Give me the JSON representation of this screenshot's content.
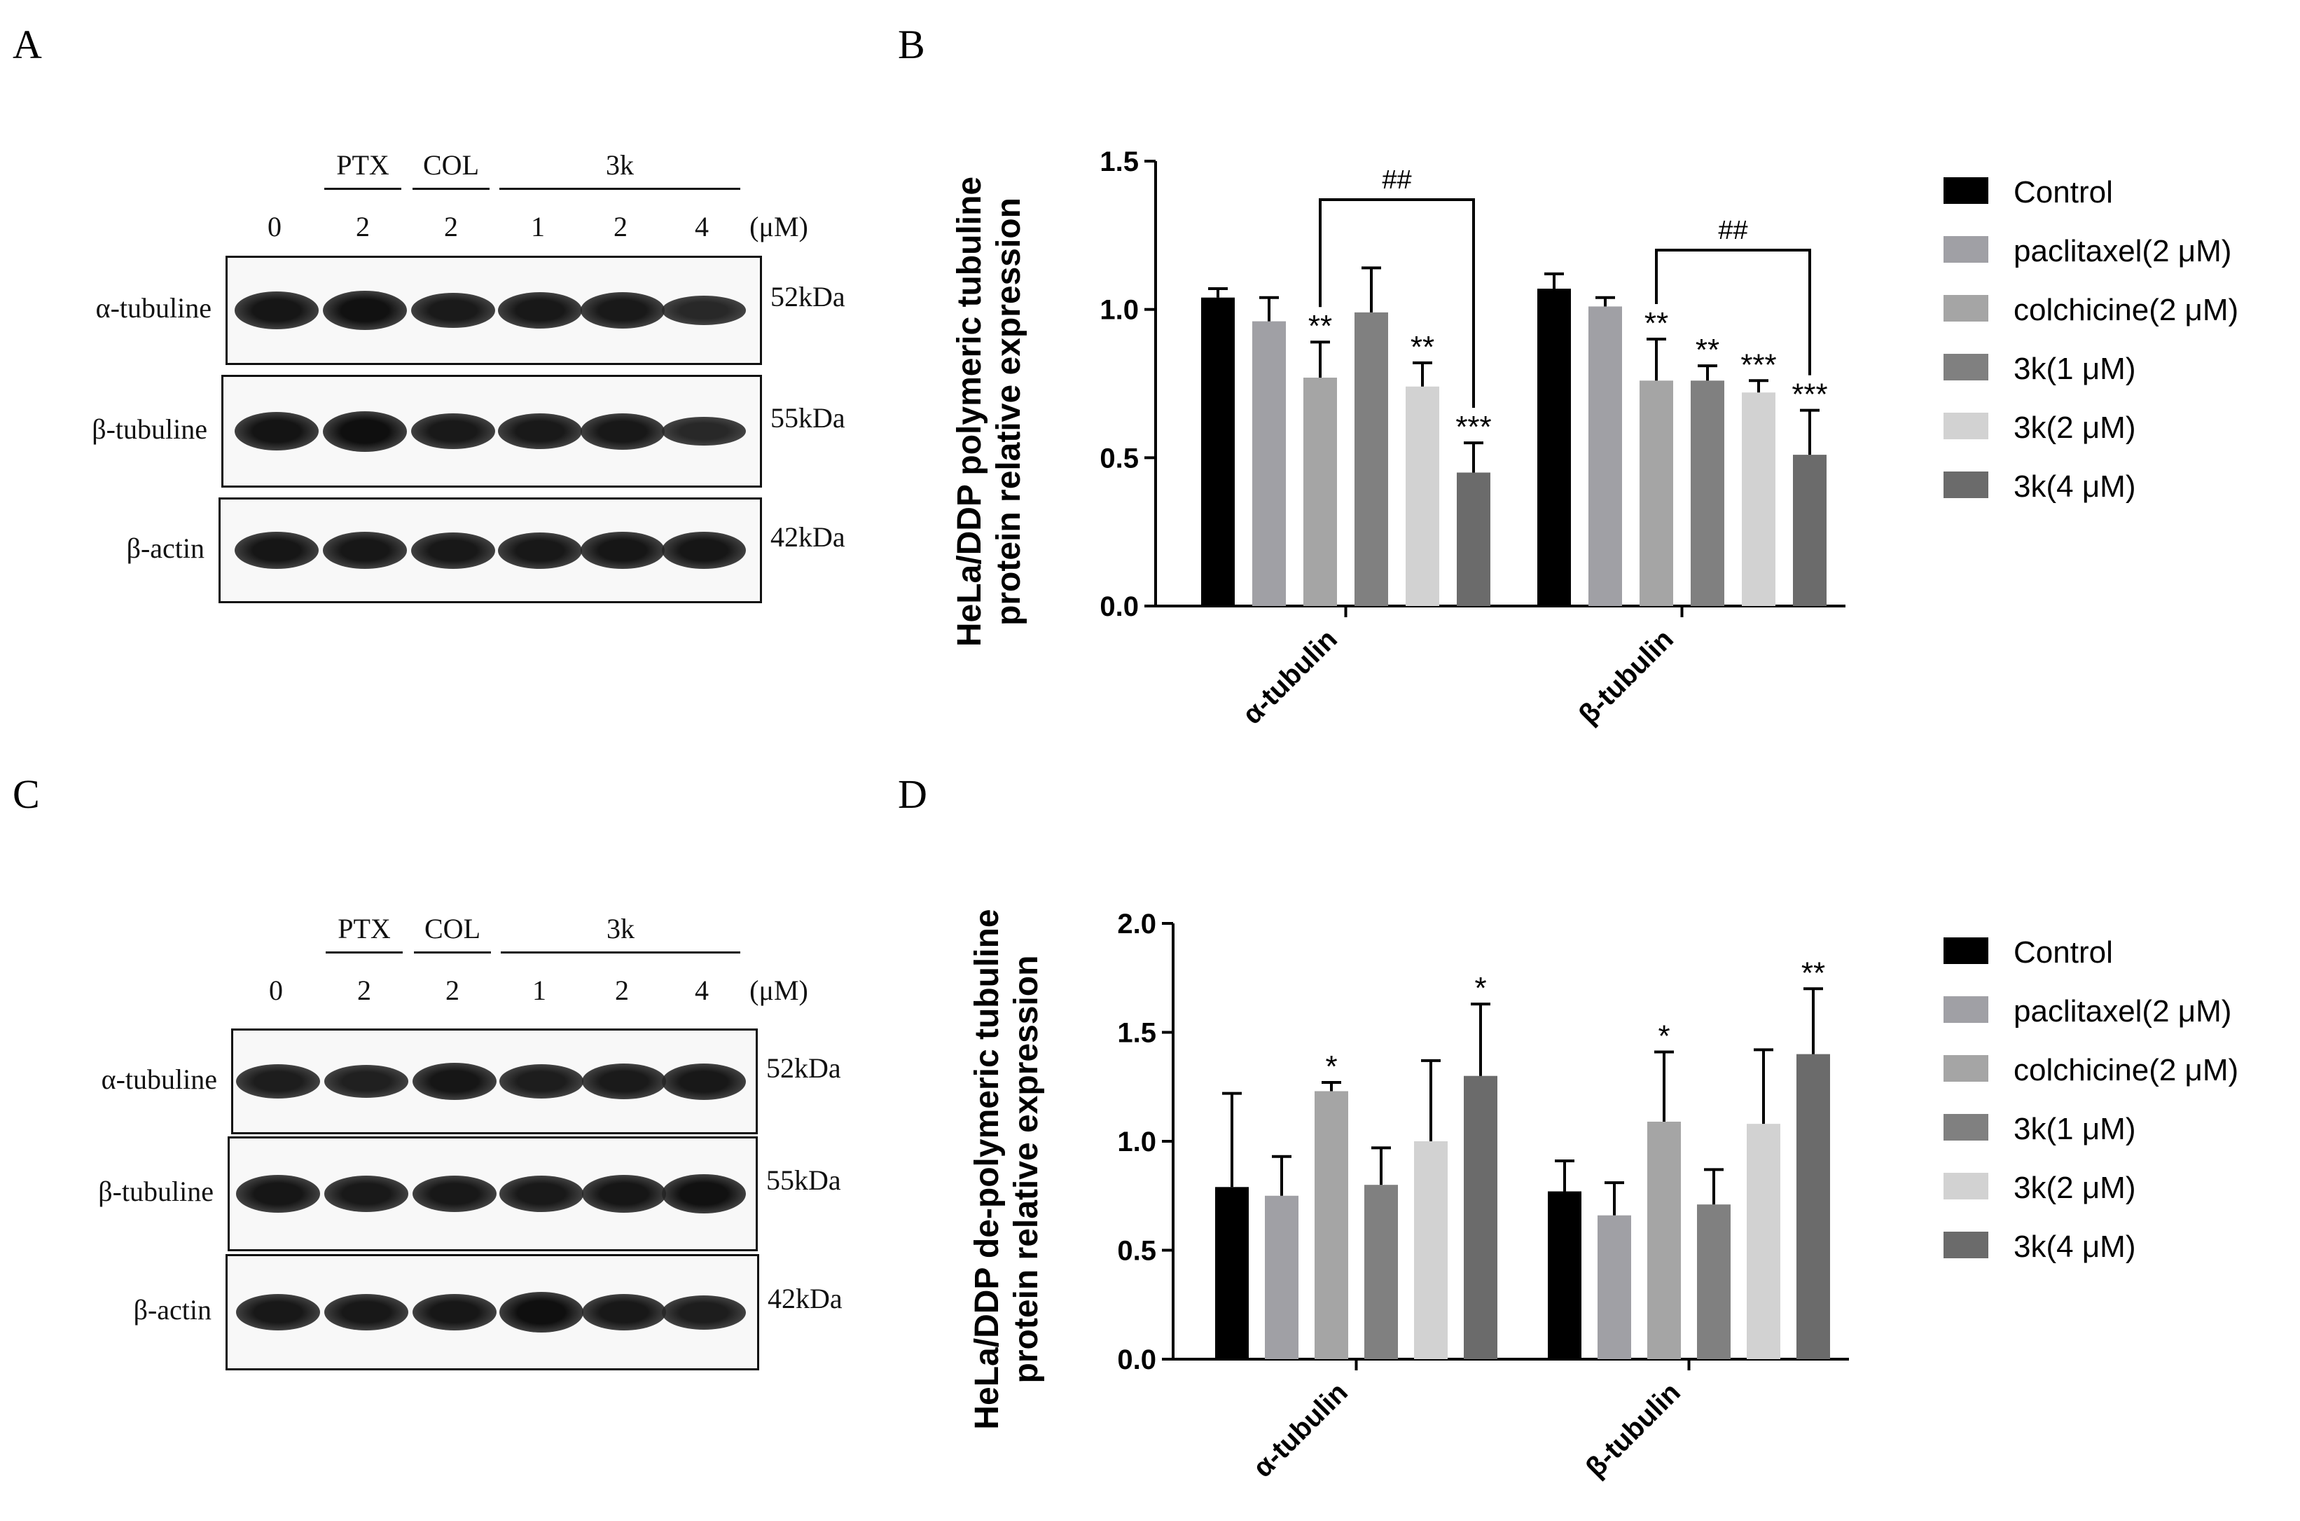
{
  "panels": {
    "A": "A",
    "B": "B",
    "C": "C",
    "D": "D"
  },
  "blot_top": {
    "groups": [
      "PTX",
      "COL",
      "3k"
    ],
    "lanes": [
      "0",
      "2",
      "2",
      "1",
      "2",
      "4"
    ],
    "unit": "(μM)",
    "rows": [
      {
        "label": "α-tubuline",
        "kda": "52kDa",
        "intensity": [
          0.85,
          0.95,
          0.75,
          0.8,
          0.78,
          0.45
        ]
      },
      {
        "label": "β-tubuline",
        "kda": "55kDa",
        "intensity": [
          0.9,
          1.0,
          0.78,
          0.78,
          0.8,
          0.45
        ]
      },
      {
        "label": "β-actin",
        "kda": "42kDa",
        "intensity": [
          0.85,
          0.82,
          0.8,
          0.8,
          0.85,
          0.85
        ]
      }
    ]
  },
  "blot_bottom": {
    "groups": [
      "PTX",
      "COL",
      "3k"
    ],
    "lanes": [
      "0",
      "2",
      "2",
      "1",
      "2",
      "4"
    ],
    "unit": "(μM)",
    "rows": [
      {
        "label": "α-tubuline",
        "kda": "52kDa",
        "intensity": [
          0.7,
          0.62,
          0.85,
          0.68,
          0.75,
          0.8
        ]
      },
      {
        "label": "β-tubuline",
        "kda": "55kDa",
        "intensity": [
          0.85,
          0.78,
          0.8,
          0.78,
          0.85,
          0.95
        ]
      },
      {
        "label": "β-actin",
        "kda": "42kDa",
        "intensity": [
          0.8,
          0.8,
          0.82,
          1.0,
          0.8,
          0.7
        ]
      }
    ]
  },
  "colors": {
    "Control": "#000000",
    "paclitaxel(2 μM)": "#a0a0a5",
    "colchicine(2 μM)": "#a5a5a5",
    "3k(1 μM)": "#808080",
    "3k(2 μM)": "#d2d2d2",
    "3k(4 μM)": "#6b6b6b"
  },
  "chart_data": [
    {
      "type": "bar",
      "ylabel": [
        "HeLa/DDP  polymeric tubuline",
        "protein relative expression"
      ],
      "categories": [
        "α-tubulin",
        "β-tubulin"
      ],
      "ylim": [
        0,
        1.5
      ],
      "yticks": [
        "0.0",
        "0.5",
        "1.0",
        "1.5"
      ],
      "legend_position": "right",
      "series": [
        {
          "name": "Control",
          "values": [
            1.04,
            1.07
          ],
          "errors": [
            0.03,
            0.05
          ],
          "sig": [
            "",
            ""
          ]
        },
        {
          "name": "paclitaxel(2 μM)",
          "values": [
            0.96,
            1.01
          ],
          "errors": [
            0.08,
            0.03
          ],
          "sig": [
            "",
            ""
          ]
        },
        {
          "name": "colchicine(2 μM)",
          "values": [
            0.77,
            0.76
          ],
          "errors": [
            0.12,
            0.14
          ],
          "sig": [
            "**",
            "**"
          ]
        },
        {
          "name": "3k(1 μM)",
          "values": [
            0.99,
            0.76
          ],
          "errors": [
            0.15,
            0.05
          ],
          "sig": [
            "",
            "**"
          ]
        },
        {
          "name": "3k(2 μM)",
          "values": [
            0.74,
            0.72
          ],
          "errors": [
            0.08,
            0.04
          ],
          "sig": [
            "**",
            "***"
          ]
        },
        {
          "name": "3k(4 μM)",
          "values": [
            0.45,
            0.51
          ],
          "errors": [
            0.1,
            0.15
          ],
          "sig": [
            "***",
            "***"
          ]
        }
      ],
      "brackets": [
        {
          "category": 0,
          "from_series": 2,
          "to_series": 5,
          "label": "##",
          "y": 1.37
        },
        {
          "category": 1,
          "from_series": 2,
          "to_series": 5,
          "label": "##",
          "y": 1.2
        }
      ]
    },
    {
      "type": "bar",
      "ylabel": [
        "HeLa/DDP  de-polymeric tubuline",
        "protein relative expression"
      ],
      "categories": [
        "α-tubulin",
        "β-tubulin"
      ],
      "ylim": [
        0,
        2.0
      ],
      "yticks": [
        "0.0",
        "0.5",
        "1.0",
        "1.5",
        "2.0"
      ],
      "legend_position": "right",
      "series": [
        {
          "name": "Control",
          "values": [
            0.79,
            0.77
          ],
          "errors": [
            0.43,
            0.14
          ],
          "sig": [
            "",
            ""
          ]
        },
        {
          "name": "paclitaxel(2 μM)",
          "values": [
            0.75,
            0.66
          ],
          "errors": [
            0.18,
            0.15
          ],
          "sig": [
            "",
            ""
          ]
        },
        {
          "name": "colchicine(2 μM)",
          "values": [
            1.23,
            1.09
          ],
          "errors": [
            0.04,
            0.32
          ],
          "sig": [
            "*",
            "*"
          ]
        },
        {
          "name": "3k(1 μM)",
          "values": [
            0.8,
            0.71
          ],
          "errors": [
            0.17,
            0.16
          ],
          "sig": [
            "",
            ""
          ]
        },
        {
          "name": "3k(2 μM)",
          "values": [
            1.0,
            1.08
          ],
          "errors": [
            0.37,
            0.34
          ],
          "sig": [
            "",
            ""
          ]
        },
        {
          "name": "3k(4 μM)",
          "values": [
            1.3,
            1.4
          ],
          "errors": [
            0.33,
            0.3
          ],
          "sig": [
            "*",
            "**"
          ]
        }
      ],
      "brackets": []
    }
  ]
}
